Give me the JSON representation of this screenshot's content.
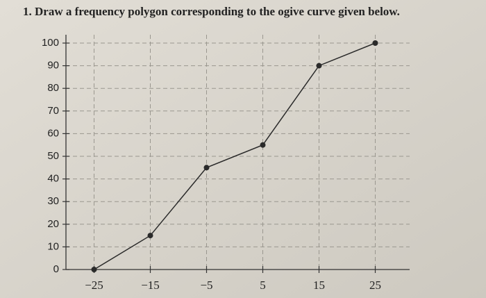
{
  "chart_data": {
    "type": "line",
    "title": "1. Draw a frequency polygon corresponding to the ogive curve given below.",
    "x": [
      -25,
      -15,
      -5,
      5,
      15,
      25
    ],
    "series": [
      {
        "color": "#2a2a2a",
        "values": [
          0,
          15,
          45,
          55,
          90,
          100
        ]
      }
    ],
    "xlim": [
      -30,
      30
    ],
    "xticks": [
      {
        "value": -25,
        "label": "−25"
      },
      {
        "value": -15,
        "label": "−15"
      },
      {
        "value": -5,
        "label": "−5"
      },
      5,
      15,
      25
    ],
    "ylim": [
      0,
      100
    ],
    "yticks": [
      0,
      10,
      20,
      30,
      40,
      50,
      60,
      70,
      80,
      90,
      100
    ],
    "grid": true
  }
}
